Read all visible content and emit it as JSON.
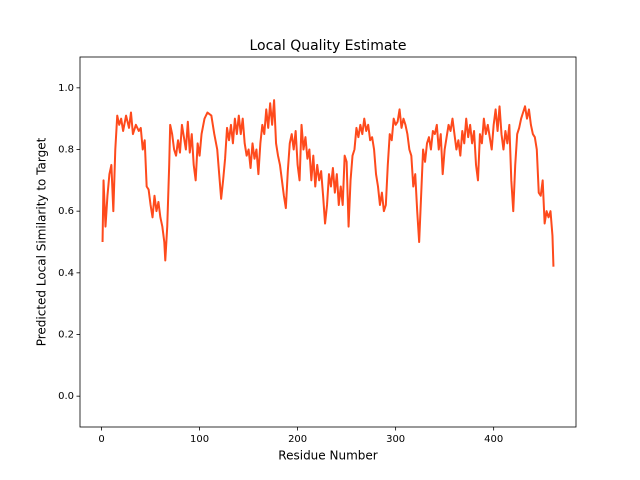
{
  "chart_data": {
    "type": "line",
    "title": "Local Quality Estimate",
    "x_label": "Residue Number",
    "y_label": "Predicted Local Similarity to Target",
    "series": [
      {
        "color": "#fe4a1c",
        "x": [
          1,
          2,
          4,
          6,
          8,
          10,
          12,
          14,
          16,
          18,
          20,
          22,
          25,
          28,
          30,
          32,
          35,
          38,
          40,
          42,
          44,
          46,
          48,
          50,
          52,
          54,
          56,
          58,
          60,
          62,
          64,
          65,
          67,
          69,
          70,
          72,
          74,
          76,
          78,
          80,
          82,
          84,
          86,
          88,
          90,
          92,
          94,
          96,
          98,
          100,
          102,
          105,
          108,
          112,
          115,
          118,
          120,
          122,
          124,
          126,
          128,
          130,
          132,
          134,
          136,
          138,
          140,
          142,
          144,
          146,
          148,
          150,
          152,
          154,
          156,
          158,
          160,
          162,
          164,
          166,
          168,
          170,
          172,
          174,
          176,
          178,
          180,
          182,
          184,
          186,
          188,
          190,
          192,
          194,
          196,
          198,
          200,
          202,
          204,
          206,
          208,
          210,
          212,
          214,
          216,
          218,
          220,
          222,
          224,
          226,
          228,
          230,
          232,
          234,
          236,
          238,
          240,
          242,
          244,
          246,
          248,
          250,
          252,
          254,
          256,
          258,
          260,
          262,
          264,
          266,
          268,
          270,
          272,
          274,
          276,
          278,
          280,
          282,
          284,
          286,
          288,
          290,
          292,
          294,
          296,
          298,
          300,
          302,
          304,
          306,
          308,
          310,
          312,
          314,
          316,
          318,
          320,
          322,
          324,
          326,
          328,
          330,
          332,
          334,
          336,
          338,
          340,
          342,
          344,
          346,
          348,
          350,
          352,
          354,
          356,
          358,
          360,
          362,
          364,
          366,
          368,
          370,
          372,
          374,
          376,
          378,
          380,
          382,
          384,
          386,
          388,
          390,
          392,
          394,
          396,
          398,
          400,
          402,
          404,
          406,
          408,
          410,
          412,
          414,
          416,
          418,
          420,
          422,
          424,
          426,
          428,
          430,
          432,
          434,
          436,
          438,
          440,
          442,
          444,
          446,
          448,
          450,
          452,
          454,
          456,
          458,
          460,
          461
        ],
        "values": [
          0.5,
          0.7,
          0.55,
          0.65,
          0.72,
          0.75,
          0.6,
          0.8,
          0.91,
          0.88,
          0.9,
          0.86,
          0.91,
          0.87,
          0.92,
          0.85,
          0.88,
          0.86,
          0.87,
          0.8,
          0.83,
          0.68,
          0.67,
          0.62,
          0.58,
          0.65,
          0.6,
          0.63,
          0.58,
          0.55,
          0.5,
          0.44,
          0.55,
          0.75,
          0.88,
          0.85,
          0.8,
          0.78,
          0.83,
          0.79,
          0.88,
          0.84,
          0.8,
          0.89,
          0.79,
          0.85,
          0.75,
          0.7,
          0.82,
          0.78,
          0.85,
          0.9,
          0.92,
          0.91,
          0.85,
          0.8,
          0.72,
          0.64,
          0.7,
          0.77,
          0.87,
          0.83,
          0.88,
          0.82,
          0.9,
          0.85,
          0.91,
          0.85,
          0.9,
          0.82,
          0.78,
          0.8,
          0.74,
          0.82,
          0.77,
          0.8,
          0.72,
          0.82,
          0.88,
          0.85,
          0.93,
          0.87,
          0.95,
          0.88,
          0.96,
          0.82,
          0.78,
          0.75,
          0.7,
          0.65,
          0.61,
          0.73,
          0.82,
          0.85,
          0.8,
          0.86,
          0.75,
          0.7,
          0.88,
          0.8,
          0.84,
          0.77,
          0.8,
          0.7,
          0.78,
          0.68,
          0.75,
          0.7,
          0.73,
          0.65,
          0.56,
          0.62,
          0.72,
          0.68,
          0.74,
          0.66,
          0.72,
          0.62,
          0.68,
          0.62,
          0.78,
          0.76,
          0.55,
          0.7,
          0.78,
          0.8,
          0.87,
          0.84,
          0.88,
          0.85,
          0.9,
          0.86,
          0.88,
          0.83,
          0.84,
          0.8,
          0.72,
          0.68,
          0.62,
          0.66,
          0.6,
          0.62,
          0.75,
          0.85,
          0.83,
          0.9,
          0.88,
          0.89,
          0.93,
          0.87,
          0.9,
          0.88,
          0.85,
          0.8,
          0.78,
          0.68,
          0.72,
          0.6,
          0.5,
          0.65,
          0.8,
          0.76,
          0.82,
          0.84,
          0.8,
          0.86,
          0.85,
          0.88,
          0.8,
          0.85,
          0.72,
          0.8,
          0.84,
          0.88,
          0.86,
          0.9,
          0.85,
          0.8,
          0.83,
          0.78,
          0.86,
          0.82,
          0.9,
          0.84,
          0.88,
          0.82,
          0.86,
          0.75,
          0.7,
          0.85,
          0.82,
          0.9,
          0.85,
          0.88,
          0.84,
          0.8,
          0.88,
          0.93,
          0.86,
          0.94,
          0.85,
          0.8,
          0.86,
          0.82,
          0.88,
          0.7,
          0.6,
          0.75,
          0.85,
          0.87,
          0.9,
          0.92,
          0.94,
          0.9,
          0.93,
          0.88,
          0.85,
          0.84,
          0.8,
          0.66,
          0.65,
          0.7,
          0.56,
          0.6,
          0.58,
          0.6,
          0.52,
          0.42
        ]
      }
    ],
    "xlim": [
      -22,
      484
    ],
    "xticks": [
      0,
      100,
      200,
      300,
      400
    ],
    "ylim": [
      -0.1,
      1.1
    ],
    "yticks": [
      {
        "value": 0,
        "label": "0.0"
      },
      {
        "value": 0.2,
        "label": "0.2"
      },
      {
        "value": 0.4,
        "label": "0.4"
      },
      {
        "value": 0.6,
        "label": "0.6"
      },
      {
        "value": 0.8,
        "label": "0.8"
      },
      {
        "value": 1,
        "label": "1.0"
      }
    ]
  }
}
